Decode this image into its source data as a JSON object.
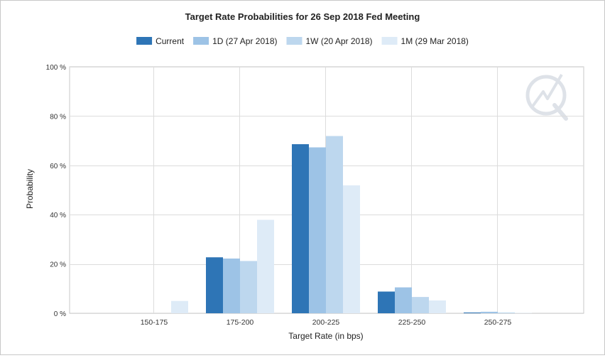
{
  "chart_data": {
    "type": "bar",
    "title": "Target Rate Probabilities for 26 Sep 2018 Fed Meeting",
    "xlabel": "Target Rate (in bps)",
    "ylabel": "Probability",
    "categories": [
      "150-175",
      "175-200",
      "200-225",
      "225-250",
      "250-275"
    ],
    "ylim": [
      0,
      100
    ],
    "yticks": [
      "0 %",
      "20 %",
      "40 %",
      "60 %",
      "80 %",
      "100 %"
    ],
    "ytick_values": [
      0,
      20,
      40,
      60,
      80,
      100
    ],
    "grid": true,
    "legend_position": "top-center",
    "series": [
      {
        "name": "Current",
        "color": "#2e75b6",
        "values": [
          0,
          22.7,
          68.6,
          8.8,
          0.3
        ]
      },
      {
        "name": "1D (27 Apr 2018)",
        "color": "#9dc3e6",
        "values": [
          0,
          22.2,
          67.3,
          10.5,
          0.6
        ]
      },
      {
        "name": "1W (20 Apr 2018)",
        "color": "#bdd7ee",
        "values": [
          0,
          21.2,
          71.9,
          6.6,
          0.3
        ]
      },
      {
        "name": "1M (29 Mar 2018)",
        "color": "#deebf7",
        "values": [
          5.0,
          37.9,
          51.9,
          5.2,
          0.1
        ]
      }
    ]
  }
}
